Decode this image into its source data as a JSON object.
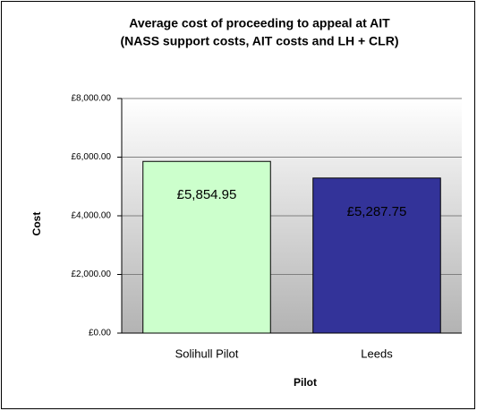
{
  "chart_data": {
    "type": "bar",
    "title": [
      "Average cost of proceeding to appeal at AIT",
      "(NASS support costs, AIT costs and LH + CLR)"
    ],
    "x_label": "Pilot",
    "y_label": "Cost",
    "categories": [
      "Solihull Pilot",
      "Leeds"
    ],
    "values": [
      5854.95,
      5287.75
    ],
    "value_labels": [
      "£5,854.95",
      "£5,287.75"
    ],
    "colors": [
      "#ccffcc",
      "#333399"
    ],
    "ylim": [
      0,
      8000
    ],
    "yticks": [
      {
        "value": 0,
        "label": "£0.00"
      },
      {
        "value": 2000,
        "label": "£2,000.00"
      },
      {
        "value": 4000,
        "label": "£4,000.00"
      },
      {
        "value": 6000,
        "label": "£6,000.00"
      },
      {
        "value": 8000,
        "label": "£8,000.00"
      }
    ],
    "grid": true
  }
}
